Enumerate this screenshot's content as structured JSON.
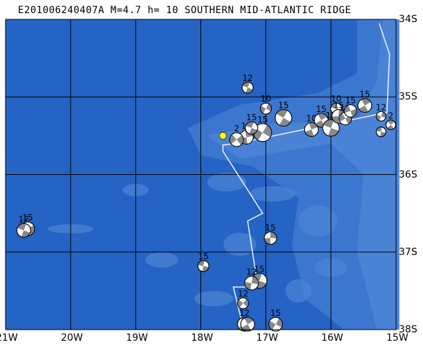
{
  "title": "E201006240407A M=4.7 h= 10 SOUTHERN MID-ATLANTIC RIDGE",
  "colors": {
    "ocean_deep": "#2563c4",
    "ocean_shallow": "#4d86d6",
    "ocean_mid": "#3e78d0",
    "ridge": "#e8eef8",
    "grid": "#000000",
    "event_marker": "#ffff00",
    "beachball_dark": "#888888",
    "beachball_light": "#ffffff"
  },
  "map": {
    "lon_min": -21,
    "lon_max": -15,
    "lat_min": -38,
    "lat_max": -34,
    "lon_ticks": [
      {
        "value": -21,
        "label": "21W"
      },
      {
        "value": -20,
        "label": "20W"
      },
      {
        "value": -19,
        "label": "19W"
      },
      {
        "value": -18,
        "label": "18W"
      },
      {
        "value": -17,
        "label": "17W"
      },
      {
        "value": -16,
        "label": "16W"
      },
      {
        "value": -15,
        "label": "15W"
      }
    ],
    "lat_ticks": [
      {
        "value": -34,
        "label": "34S"
      },
      {
        "value": -35,
        "label": "35S"
      },
      {
        "value": -36,
        "label": "36S"
      },
      {
        "value": -37,
        "label": "37S"
      },
      {
        "value": -38,
        "label": "38S"
      }
    ],
    "event": {
      "lon": -17.66,
      "lat": -35.5
    },
    "ridge_path": [
      [
        -15.26,
        -34.05
      ],
      [
        -15.1,
        -34.45
      ],
      [
        -15.14,
        -35.2
      ],
      [
        -17.45,
        -35.6
      ],
      [
        -17.66,
        -35.62
      ],
      [
        -17.66,
        -35.7
      ],
      [
        -17.05,
        -36.5
      ],
      [
        -17.28,
        -36.6
      ],
      [
        -17.15,
        -37.3
      ],
      [
        -17.14,
        -37.45
      ],
      [
        -17.5,
        -37.45
      ],
      [
        -17.34,
        -38.0
      ]
    ],
    "beachballs": [
      {
        "lon": -17.28,
        "lat": -34.88,
        "label": "12",
        "r": 8,
        "rot": 200
      },
      {
        "lon": -17.0,
        "lat": -35.15,
        "label": "10",
        "r": 8,
        "rot": 120
      },
      {
        "lon": -16.73,
        "lat": -35.27,
        "label": "15",
        "r": 12,
        "rot": 30
      },
      {
        "lon": -17.05,
        "lat": -35.46,
        "label": "15",
        "r": 13,
        "rot": 300
      },
      {
        "lon": -17.3,
        "lat": -35.52,
        "label": "15",
        "r": 10,
        "rot": 80
      },
      {
        "lon": -17.45,
        "lat": -35.55,
        "label": "2",
        "r": 10,
        "rot": 140
      },
      {
        "lon": -17.22,
        "lat": -35.4,
        "label": "15",
        "r": 9,
        "rot": 20
      },
      {
        "lon": -16.3,
        "lat": -35.42,
        "label": "10",
        "r": 10,
        "rot": 250
      },
      {
        "lon": -16.15,
        "lat": -35.3,
        "label": "15",
        "r": 10,
        "rot": 60
      },
      {
        "lon": -16.0,
        "lat": -35.4,
        "label": "15",
        "r": 12,
        "rot": 200
      },
      {
        "lon": -15.92,
        "lat": -35.15,
        "label": "10",
        "r": 8,
        "rot": 10
      },
      {
        "lon": -15.88,
        "lat": -35.25,
        "label": "15",
        "r": 10,
        "rot": 90
      },
      {
        "lon": -15.78,
        "lat": -35.28,
        "label": "15",
        "r": 9,
        "rot": 330
      },
      {
        "lon": -15.7,
        "lat": -35.18,
        "label": "15",
        "r": 9,
        "rot": 160
      },
      {
        "lon": -15.48,
        "lat": -35.11,
        "label": "15",
        "r": 10,
        "rot": 240
      },
      {
        "lon": -15.23,
        "lat": -35.25,
        "label": "12",
        "r": 7,
        "rot": 110
      },
      {
        "lon": -15.08,
        "lat": -35.36,
        "label": "2",
        "r": 7,
        "rot": 50
      },
      {
        "lon": -15.23,
        "lat": -35.45,
        "label": "",
        "r": 7,
        "rot": 190
      },
      {
        "lon": -20.66,
        "lat": -36.7,
        "label": "15",
        "r": 10,
        "rot": 150
      },
      {
        "lon": -20.72,
        "lat": -36.72,
        "label": "12",
        "r": 10,
        "rot": 20
      },
      {
        "lon": -16.93,
        "lat": -36.82,
        "label": "15",
        "r": 9,
        "rot": 90
      },
      {
        "lon": -17.96,
        "lat": -37.18,
        "label": "15",
        "r": 8,
        "rot": 10
      },
      {
        "lon": -17.1,
        "lat": -37.37,
        "label": "15",
        "r": 11,
        "rot": 200
      },
      {
        "lon": -17.22,
        "lat": -37.4,
        "label": "12",
        "r": 10,
        "rot": 280
      },
      {
        "lon": -17.35,
        "lat": -37.66,
        "label": "12",
        "r": 8,
        "rot": 130
      },
      {
        "lon": -17.33,
        "lat": -37.93,
        "label": "12",
        "r": 10,
        "rot": 60
      },
      {
        "lon": -17.28,
        "lat": -37.93,
        "label": "",
        "r": 10,
        "rot": 240
      },
      {
        "lon": -16.85,
        "lat": -37.93,
        "label": "15",
        "r": 10,
        "rot": 300
      }
    ]
  }
}
